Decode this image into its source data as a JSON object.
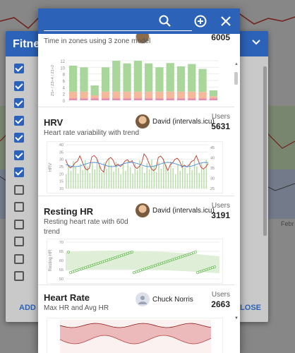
{
  "background": {
    "panel_title": "Fitne",
    "footer_left": "ADD C",
    "footer_right": "LOSE",
    "axis_label": "Febr",
    "checkboxes": [
      true,
      true,
      true,
      true,
      true,
      true,
      true,
      false,
      false,
      false,
      false,
      false,
      false
    ]
  },
  "modal": {
    "search": {
      "value": "",
      "placeholder": ""
    },
    "icons": [
      "search-icon",
      "add-circle-icon",
      "close-icon"
    ],
    "cards": [
      {
        "title": "",
        "description": "Time in zones using 3 zone model",
        "author": "",
        "users_label": "",
        "users_count": "6005",
        "chart": {
          "type": "bar",
          "ylabel": "Z5+ / Z3+4 / Z1+2",
          "yticks": [
            "0",
            "2",
            "4",
            "6",
            "8",
            "10",
            "12"
          ]
        }
      },
      {
        "title": "HRV",
        "description": "Heart rate variability with trend",
        "author": "David (intervals.icu)",
        "users_label": "Users",
        "users_count": "5631",
        "chart": {
          "type": "line",
          "ylabel": "HRV",
          "yticks_left": [
            "10",
            "15",
            "20",
            "25",
            "30",
            "35",
            "40"
          ],
          "yticks_right": [
            "25",
            "30",
            "35",
            "40",
            "45"
          ]
        }
      },
      {
        "title": "Resting HR",
        "description": "Resting heart rate with 60d trend",
        "author": "David (intervals.icu)",
        "users_label": "Users",
        "users_count": "3191",
        "chart": {
          "type": "scatter",
          "ylabel": "Resting HR",
          "yticks": [
            "50",
            "55",
            "60",
            "65",
            "70"
          ]
        }
      },
      {
        "title": "Heart Rate",
        "description": "Max HR and Avg HR",
        "author": "Chuck Norris",
        "users_label": "Users",
        "users_count": "2663",
        "chart": {
          "type": "area"
        }
      }
    ]
  },
  "colors": {
    "primary": "#2c63b8",
    "zone_green": "#a9d69b",
    "zone_orange": "#f4b89a",
    "zone_pink": "#e58fb0",
    "hrv_bar": "#b9dda9",
    "hrv_line_red": "#c0392b",
    "hrv_line_blue": "#4a90d9",
    "resting_point": "#7cc56b",
    "hr_fill": "#e5a3a3"
  }
}
